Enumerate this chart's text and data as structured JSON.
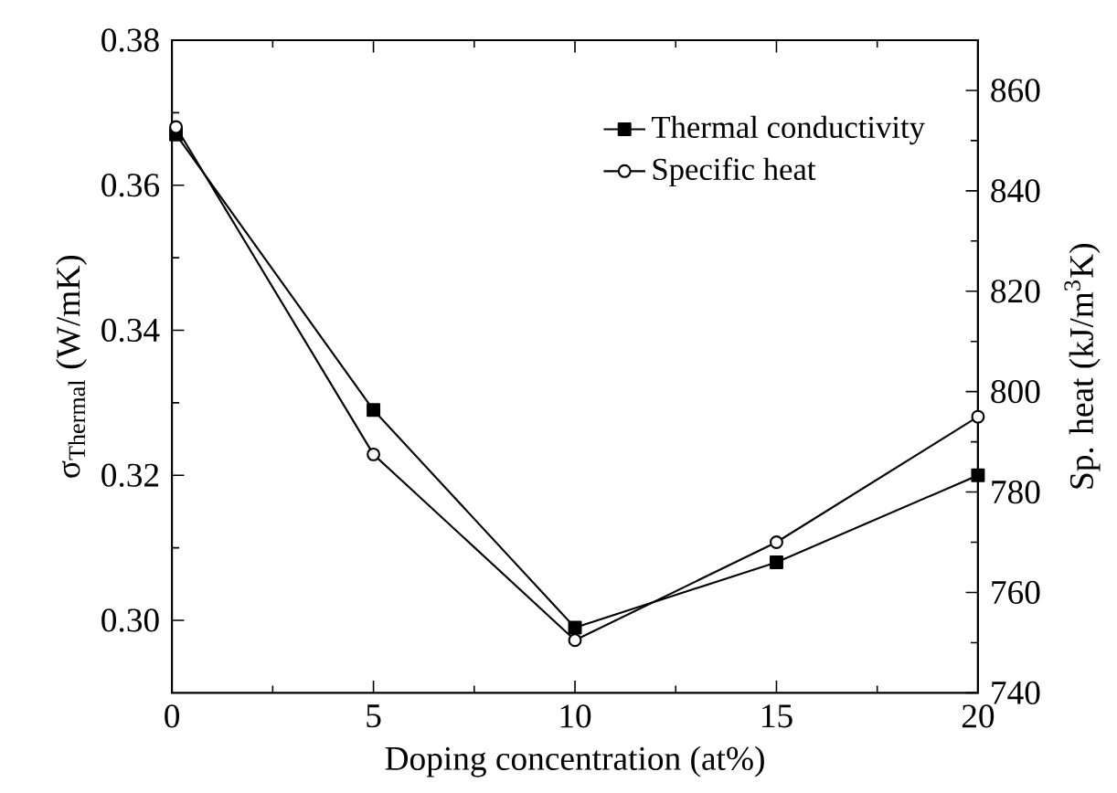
{
  "chart_data": {
    "type": "line",
    "xlabel": "Doping concentration (at%)",
    "ylabel": "σ$_{Thermal}$ (W/mK)",
    "y2label": "Sp. heat (kJ/m$^{3}$K)",
    "x": [
      0.1,
      5,
      10,
      15,
      20
    ],
    "xlim": [
      0,
      20
    ],
    "xticks": [
      0,
      5,
      10,
      15,
      20
    ],
    "ylim": [
      0.29,
      0.38
    ],
    "yticks": [
      {
        "value": 0.3,
        "label": "0.30"
      },
      {
        "value": 0.32,
        "label": "0.32"
      },
      {
        "value": 0.34,
        "label": "0.34"
      },
      {
        "value": 0.36,
        "label": "0.36"
      },
      {
        "value": 0.38,
        "label": "0.38"
      }
    ],
    "y2lim": [
      740,
      870
    ],
    "y2ticks": [
      740,
      760,
      780,
      800,
      820,
      840,
      860
    ],
    "legend": "top right",
    "grid": false,
    "line_style": "solid",
    "series": [
      {
        "name": "Thermal conductivity",
        "color": "#000000",
        "marker": "square",
        "values": [
          0.367,
          0.329,
          0.299,
          0.308,
          0.32
        ]
      },
      {
        "name": "Specific heat",
        "color": "#000000",
        "marker": "circle",
        "axis": "y2",
        "values": [
          852.7,
          787.5,
          750.5,
          770,
          795
        ]
      }
    ]
  }
}
